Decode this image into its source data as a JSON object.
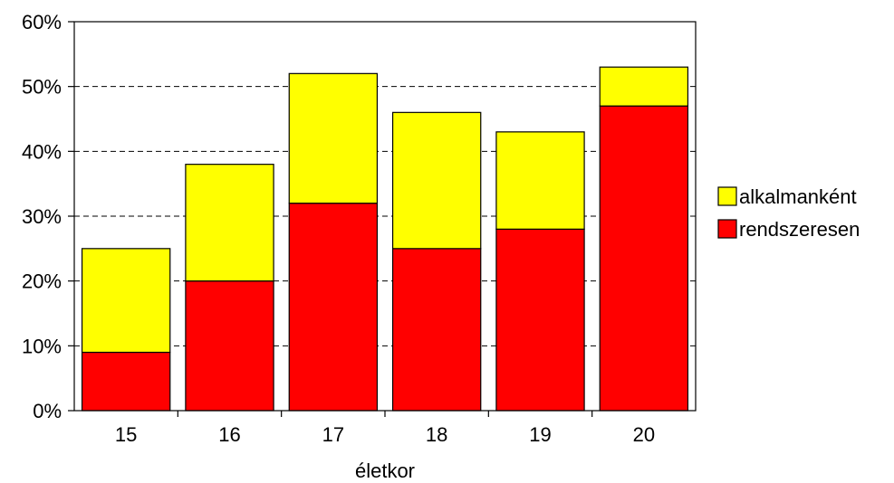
{
  "chart_data": {
    "type": "bar",
    "stacked": true,
    "categories": [
      "15",
      "16",
      "17",
      "18",
      "19",
      "20"
    ],
    "series": [
      {
        "name": "rendszeresen",
        "color": "#ff0000",
        "values": [
          9,
          20,
          32,
          25,
          28,
          47
        ]
      },
      {
        "name": "alkalmanként",
        "color": "#ffff00",
        "values": [
          16,
          18,
          20,
          21,
          15,
          6
        ]
      }
    ],
    "xlabel": "életkor",
    "ylabel": "",
    "ylim": [
      0,
      60
    ],
    "yticks": [
      "0%",
      "10%",
      "20%",
      "30%",
      "40%",
      "50%",
      "60%"
    ],
    "grid": "horizontal dashed",
    "legend": {
      "placement": "right",
      "order": [
        "alkalmanként",
        "rendszeresen"
      ]
    }
  }
}
